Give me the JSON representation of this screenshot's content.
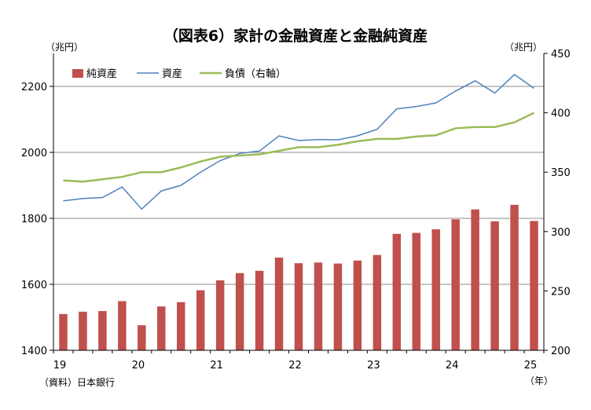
{
  "chart_data": {
    "type": "bar+line",
    "title": "（図表6）家計の金融資産と金融純資産",
    "left_unit": "（兆円）",
    "right_unit": "（兆円）",
    "x_unit": "（年）",
    "source": "（資料）日本銀行",
    "left_axis": {
      "ylim": [
        1400,
        2300
      ],
      "ticks": [
        "1400",
        "1600",
        "1800",
        "2000",
        "2200"
      ]
    },
    "right_axis": {
      "ylim": [
        200,
        450
      ],
      "ticks": [
        "200",
        "250",
        "300",
        "350",
        "400",
        "450"
      ]
    },
    "x_ticks": [
      "19",
      "20",
      "21",
      "22",
      "23",
      "24",
      "25"
    ],
    "grid": "horizontal",
    "legend_position": "top-left",
    "colors": {
      "bar": "#C0504D",
      "asset": "#4F81BD",
      "liability": "#9BBB59"
    },
    "series": [
      {
        "name": "純資産",
        "axis": "left",
        "type": "bar",
        "values": [
          1510,
          1517,
          1519,
          1549,
          1476,
          1533,
          1546,
          1582,
          1612,
          1634,
          1641,
          1681,
          1664,
          1666,
          1663,
          1672,
          1689,
          1753,
          1756,
          1767,
          1797,
          1827,
          1791,
          1841,
          1792
        ]
      },
      {
        "name": "資産",
        "axis": "left",
        "type": "line",
        "values": [
          1853,
          1860,
          1863,
          1895,
          1828,
          1883,
          1900,
          1940,
          1975,
          1997,
          2004,
          2050,
          2036,
          2039,
          2038,
          2050,
          2070,
          2132,
          2139,
          2150,
          2186,
          2217,
          2180,
          2236,
          2194
        ]
      },
      {
        "name": "負債（右軸）",
        "axis": "right",
        "type": "line",
        "values": [
          343,
          342,
          344,
          346,
          350,
          350,
          354,
          359,
          363,
          364,
          365,
          368,
          371,
          371,
          373,
          376,
          378,
          378,
          380,
          381,
          387,
          388,
          388,
          392,
          400
        ]
      }
    ]
  }
}
